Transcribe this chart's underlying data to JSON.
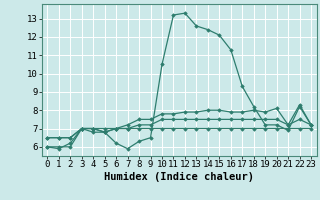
{
  "xlabel": "Humidex (Indice chaleur)",
  "ylabel": "",
  "xlim": [
    -0.5,
    23.5
  ],
  "ylim": [
    5.5,
    13.8
  ],
  "yticks": [
    6,
    7,
    8,
    9,
    10,
    11,
    12,
    13
  ],
  "xticks": [
    0,
    1,
    2,
    3,
    4,
    5,
    6,
    7,
    8,
    9,
    10,
    11,
    12,
    13,
    14,
    15,
    16,
    17,
    18,
    19,
    20,
    21,
    22,
    23
  ],
  "bg_color": "#cce9e9",
  "grid_color": "#b0d8d8",
  "line_color": "#2e7d6e",
  "series": [
    [
      6.0,
      5.9,
      6.2,
      7.0,
      6.8,
      6.8,
      6.2,
      5.9,
      6.3,
      6.5,
      10.5,
      13.2,
      13.3,
      12.6,
      12.4,
      12.1,
      11.3,
      9.3,
      8.2,
      7.2,
      7.2,
      6.9,
      8.2,
      7.2
    ],
    [
      6.0,
      6.0,
      6.0,
      7.0,
      7.0,
      6.8,
      7.0,
      7.2,
      7.5,
      7.5,
      7.8,
      7.8,
      7.9,
      7.9,
      8.0,
      8.0,
      7.9,
      7.9,
      8.0,
      7.9,
      8.1,
      7.2,
      8.3,
      7.2
    ],
    [
      6.5,
      6.5,
      6.5,
      7.0,
      7.0,
      6.8,
      7.0,
      7.0,
      7.0,
      7.0,
      7.0,
      7.0,
      7.0,
      7.0,
      7.0,
      7.0,
      7.0,
      7.0,
      7.0,
      7.0,
      7.0,
      7.0,
      7.0,
      7.0
    ],
    [
      6.5,
      6.5,
      6.5,
      7.0,
      7.0,
      7.0,
      7.0,
      7.0,
      7.2,
      7.2,
      7.5,
      7.5,
      7.5,
      7.5,
      7.5,
      7.5,
      7.5,
      7.5,
      7.5,
      7.5,
      7.5,
      7.2,
      7.5,
      7.2
    ]
  ],
  "marker": "D",
  "marker_size": 1.8,
  "linewidth": 0.9,
  "font_family": "monospace",
  "tick_fontsize": 6.5,
  "xlabel_fontsize": 7.5
}
